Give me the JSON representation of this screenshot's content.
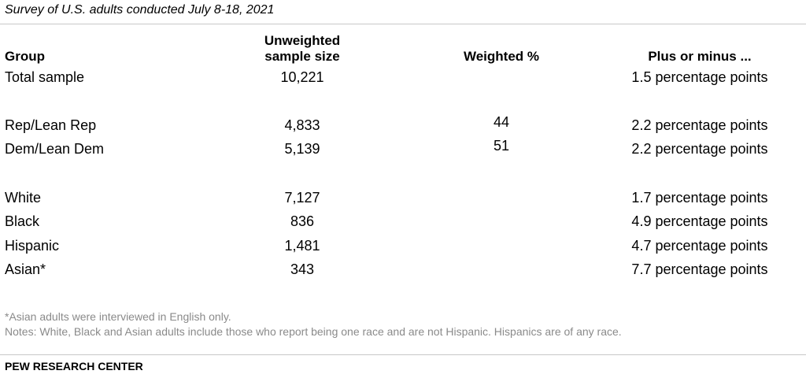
{
  "subtitle": "Survey of U.S. adults conducted July 8-18, 2021",
  "headers": {
    "group": "Group",
    "sample_line1": "Unweighted",
    "sample_line2": "sample size",
    "weighted": "Weighted %",
    "moe": "Plus or minus ..."
  },
  "rows": [
    {
      "group": "Total sample",
      "sample": "10,221",
      "weighted": "",
      "moe": "1.5 percentage points"
    },
    {
      "group": "Rep/Lean Rep",
      "sample": "4,833",
      "weighted": "44",
      "moe": "2.2 percentage points"
    },
    {
      "group": "Dem/Lean Dem",
      "sample": "5,139",
      "weighted": "51",
      "moe": "2.2 percentage points"
    },
    {
      "group": "White",
      "sample": "7,127",
      "weighted": "",
      "moe": "1.7 percentage points"
    },
    {
      "group": "Black",
      "sample": "836",
      "weighted": "",
      "moe": "4.9 percentage points"
    },
    {
      "group": "Hispanic",
      "sample": "1,481",
      "weighted": "",
      "moe": "4.7 percentage points"
    },
    {
      "group": "Asian*",
      "sample": "343",
      "weighted": "",
      "moe": "7.7 percentage points"
    }
  ],
  "notes": {
    "footnote": "*Asian adults were interviewed in English only.",
    "notes": "Notes: White, Black and Asian adults include those who report being one race and are not Hispanic. Hispanics are of any race."
  },
  "source": "PEW RESEARCH CENTER"
}
